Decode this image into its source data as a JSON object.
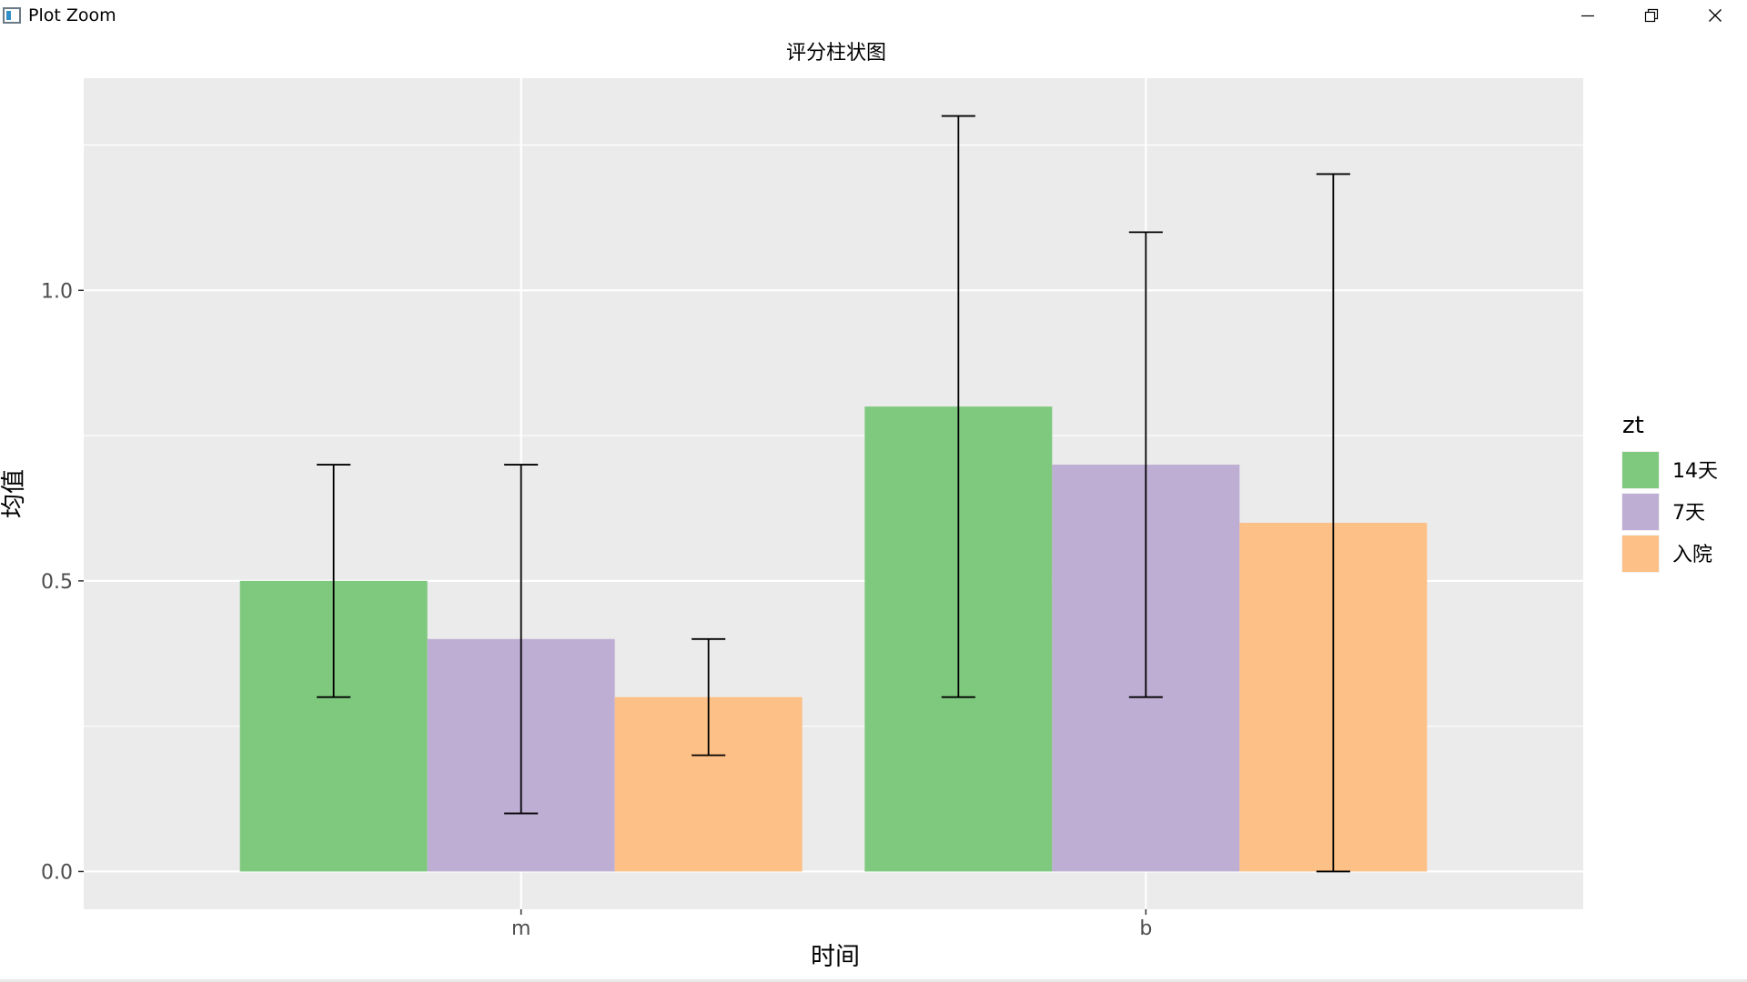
{
  "window": {
    "title": "Plot Zoom",
    "controls": [
      "minimize-icon",
      "restore-icon",
      "close-icon"
    ]
  },
  "chart_data": {
    "type": "bar",
    "title": "评分柱状图",
    "xlabel": "时间",
    "ylabel": "均值",
    "categories": [
      "m",
      "b"
    ],
    "ylim": [
      -0.065,
      1.365
    ],
    "yticks": [
      0.0,
      0.5,
      1.0
    ],
    "ytick_labels": [
      "0.0",
      "0.5",
      "1.0"
    ],
    "grid": true,
    "legend": {
      "title": "zt",
      "position": "right"
    },
    "series": [
      {
        "name": "14天",
        "color": "#7fc97f",
        "values": [
          0.5,
          0.8
        ],
        "err_low": [
          0.3,
          0.3
        ],
        "err_high": [
          0.7,
          1.3
        ]
      },
      {
        "name": "7天",
        "color": "#beaed4",
        "values": [
          0.4,
          0.7
        ],
        "err_low": [
          0.1,
          0.3
        ],
        "err_high": [
          0.7,
          1.1
        ]
      },
      {
        "name": "入院",
        "color": "#fdc086",
        "values": [
          0.3,
          0.6
        ],
        "err_low": [
          0.2,
          0.0
        ],
        "err_high": [
          0.4,
          1.2
        ]
      }
    ]
  }
}
